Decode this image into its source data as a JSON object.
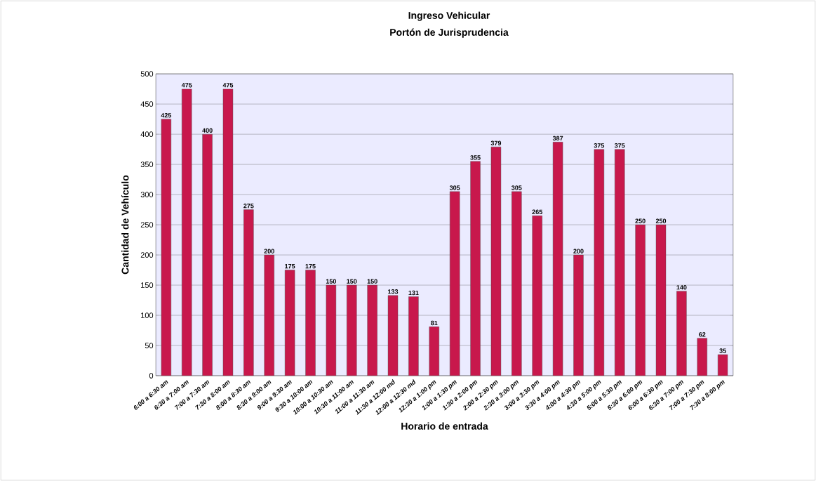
{
  "chart_data": {
    "type": "bar",
    "title": "Ingreso Vehicular",
    "subtitle": "Portón de Jurisprudencia",
    "xlabel": "Horario de entrada",
    "ylabel": "Cantidad de Vehículo",
    "categories": [
      "6:00 a 6:30 am",
      "6:30 a 7:00 am",
      "7:00 a 7:30 am",
      "7:30 a 8:00 am",
      "8:00 a 8:30 am",
      "8:30 a 9:00 am",
      "9:00 a 9:30 am",
      "9:30 a 10:00 am",
      "10:00 a 10:30 am",
      "10:30 a 11:00 am",
      "11:00 a 11:30 am",
      "11:30 a 12:00 md",
      "12:00 a 12:30 md",
      "12:30 a 1:00 pm",
      "1:00 a 1:30 pm",
      "1:30 a 2:00 pm",
      "2:00 a 2:30 pm",
      "2:30 a 3:00 pm",
      "3:00 a 3:30 pm",
      "3:30 a 4:00 pm",
      "4:00 a 4:30 pm",
      "4:30 a 5:00 pm",
      "5:00 a 5:30 pm",
      "5:30 a 6:00 pm",
      "6:00 a 6:30 pm",
      "6:30 a 7:00 pm",
      "7:00 a 7:30 pm",
      "7:30 a 8:00 pm"
    ],
    "values": [
      425,
      475,
      400,
      475,
      275,
      200,
      175,
      175,
      150,
      150,
      150,
      133,
      131,
      81,
      305,
      355,
      379,
      305,
      265,
      387,
      200,
      375,
      375,
      250,
      250,
      140,
      62,
      35
    ],
    "color": "#c8184c",
    "ylim": [
      0,
      500
    ],
    "yticks": [
      0,
      50,
      100,
      150,
      200,
      250,
      300,
      350,
      400,
      450,
      500
    ],
    "grid": "y",
    "data_labels": true
  }
}
